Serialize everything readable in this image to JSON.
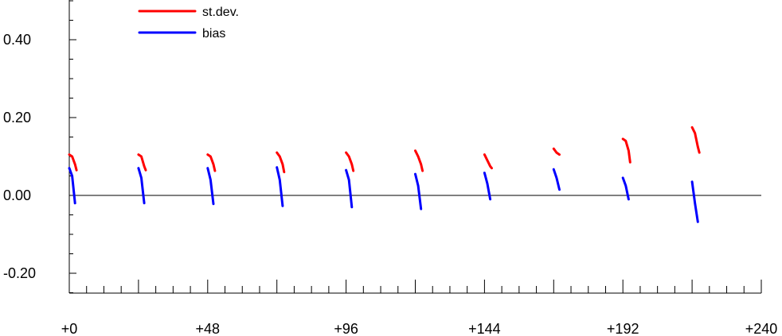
{
  "chart_data": {
    "type": "line",
    "title": "",
    "xlabel": "",
    "ylabel": "",
    "xlim": [
      0,
      240
    ],
    "ylim": [
      -0.25,
      0.5
    ],
    "x_ticks": [
      0,
      48,
      96,
      144,
      192,
      240
    ],
    "x_tick_labels": [
      "+0",
      "+48",
      "+96",
      "+144",
      "+192",
      "+240"
    ],
    "y_ticks": [
      0.4,
      0.2,
      0.0,
      -0.2
    ],
    "y_tick_labels": [
      "0.40",
      "0.20",
      "0.00",
      "-0.20"
    ],
    "zero_line": true,
    "grid": false,
    "legend_position": "top-left",
    "colors": {
      "st_dev": "#ff0000",
      "bias": "#0000ff",
      "axis": "#000000"
    },
    "series": [
      {
        "name": "st.dev.",
        "color": "#ff0000",
        "segments": [
          [
            [
              0,
              0.105
            ],
            [
              1,
              0.1
            ],
            [
              2,
              0.08
            ],
            [
              2.5,
              0.065
            ]
          ],
          [
            [
              24,
              0.105
            ],
            [
              25,
              0.1
            ],
            [
              26,
              0.075
            ],
            [
              26.5,
              0.065
            ]
          ],
          [
            [
              48,
              0.105
            ],
            [
              49,
              0.1
            ],
            [
              50,
              0.08
            ],
            [
              50.5,
              0.063
            ]
          ],
          [
            [
              72,
              0.11
            ],
            [
              73,
              0.1
            ],
            [
              74,
              0.08
            ],
            [
              74.5,
              0.06
            ]
          ],
          [
            [
              96,
              0.11
            ],
            [
              97,
              0.1
            ],
            [
              98,
              0.08
            ],
            [
              98.5,
              0.063
            ]
          ],
          [
            [
              120,
              0.115
            ],
            [
              121,
              0.1
            ],
            [
              122,
              0.08
            ],
            [
              122.5,
              0.063
            ]
          ],
          [
            [
              144,
              0.105
            ],
            [
              145,
              0.09
            ],
            [
              146,
              0.075
            ],
            [
              146.5,
              0.07
            ]
          ],
          [
            [
              168,
              0.12
            ],
            [
              169,
              0.11
            ],
            [
              170,
              0.105
            ]
          ],
          [
            [
              192,
              0.145
            ],
            [
              193,
              0.14
            ],
            [
              194,
              0.115
            ],
            [
              194.5,
              0.085
            ]
          ],
          [
            [
              216,
              0.175
            ],
            [
              217,
              0.16
            ],
            [
              218,
              0.125
            ],
            [
              218.5,
              0.11
            ]
          ]
        ]
      },
      {
        "name": "bias",
        "color": "#0000ff",
        "segments": [
          [
            [
              0,
              0.07
            ],
            [
              1,
              0.05
            ],
            [
              2,
              -0.02
            ]
          ],
          [
            [
              24,
              0.07
            ],
            [
              25,
              0.045
            ],
            [
              26,
              -0.02
            ]
          ],
          [
            [
              48,
              0.07
            ],
            [
              49,
              0.04
            ],
            [
              50,
              -0.022
            ]
          ],
          [
            [
              72,
              0.072
            ],
            [
              73,
              0.04
            ],
            [
              74,
              -0.027
            ]
          ],
          [
            [
              96,
              0.065
            ],
            [
              97,
              0.04
            ],
            [
              98,
              -0.03
            ]
          ],
          [
            [
              120,
              0.055
            ],
            [
              121,
              0.025
            ],
            [
              122,
              -0.035
            ]
          ],
          [
            [
              144,
              0.058
            ],
            [
              145,
              0.03
            ],
            [
              146,
              -0.01
            ]
          ],
          [
            [
              168,
              0.067
            ],
            [
              169,
              0.045
            ],
            [
              170,
              0.015
            ]
          ],
          [
            [
              192,
              0.045
            ],
            [
              193,
              0.025
            ],
            [
              194,
              -0.01
            ]
          ],
          [
            [
              216,
              0.035
            ],
            [
              217,
              -0.02
            ],
            [
              218,
              -0.068
            ]
          ]
        ]
      }
    ]
  }
}
